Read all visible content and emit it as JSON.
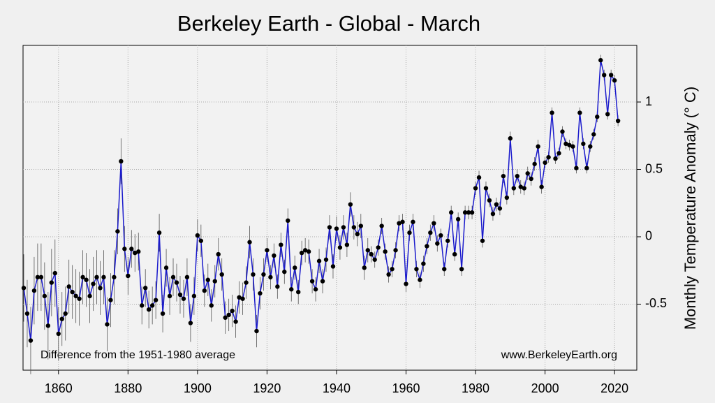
{
  "chart_data": {
    "type": "line",
    "title": "Berkeley Earth - Global - March",
    "y_label": "Monthly Temperature Anomaly (° C)",
    "annotations": [
      "Difference from the 1951-1980 average",
      "www.BerkeleyEarth.org"
    ],
    "color": "#1a1acc",
    "marker_color": "#000000",
    "grid": true,
    "xlim": [
      1849.8,
      2026.4
    ],
    "xticks": [
      1860,
      1880,
      1900,
      1920,
      1940,
      1960,
      1980,
      2000,
      2020
    ],
    "ylim": [
      -0.99,
      1.42
    ],
    "yticks": [
      -0.5,
      0,
      0.5,
      1
    ],
    "x": [
      1850,
      1851,
      1852,
      1853,
      1854,
      1855,
      1856,
      1857,
      1858,
      1859,
      1860,
      1861,
      1862,
      1863,
      1864,
      1865,
      1866,
      1867,
      1868,
      1869,
      1870,
      1871,
      1872,
      1873,
      1874,
      1875,
      1876,
      1877,
      1878,
      1879,
      1880,
      1881,
      1882,
      1883,
      1884,
      1885,
      1886,
      1887,
      1888,
      1889,
      1890,
      1891,
      1892,
      1893,
      1894,
      1895,
      1896,
      1897,
      1898,
      1899,
      1900,
      1901,
      1902,
      1903,
      1904,
      1905,
      1906,
      1907,
      1908,
      1909,
      1910,
      1911,
      1912,
      1913,
      1914,
      1915,
      1916,
      1917,
      1918,
      1919,
      1920,
      1921,
      1922,
      1923,
      1924,
      1925,
      1926,
      1927,
      1928,
      1929,
      1930,
      1931,
      1932,
      1933,
      1934,
      1935,
      1936,
      1937,
      1938,
      1939,
      1940,
      1941,
      1942,
      1943,
      1944,
      1945,
      1946,
      1947,
      1948,
      1949,
      1950,
      1951,
      1952,
      1953,
      1954,
      1955,
      1956,
      1957,
      1958,
      1959,
      1960,
      1961,
      1962,
      1963,
      1964,
      1965,
      1966,
      1967,
      1968,
      1969,
      1970,
      1971,
      1972,
      1973,
      1974,
      1975,
      1976,
      1977,
      1978,
      1979,
      1980,
      1981,
      1982,
      1983,
      1984,
      1985,
      1986,
      1987,
      1988,
      1989,
      1990,
      1991,
      1992,
      1993,
      1994,
      1995,
      1996,
      1997,
      1998,
      1999,
      2000,
      2001,
      2002,
      2003,
      2004,
      2005,
      2006,
      2007,
      2008,
      2009,
      2010,
      2011,
      2012,
      2013,
      2014,
      2015,
      2016,
      2017,
      2018,
      2019,
      2020,
      2021
    ],
    "values": [
      -0.38,
      -0.57,
      -0.77,
      -0.4,
      -0.3,
      -0.3,
      -0.44,
      -0.66,
      -0.34,
      -0.27,
      -0.72,
      -0.61,
      -0.57,
      -0.37,
      -0.41,
      -0.44,
      -0.46,
      -0.3,
      -0.32,
      -0.44,
      -0.35,
      -0.3,
      -0.38,
      -0.3,
      -0.65,
      -0.47,
      -0.3,
      0.04,
      0.56,
      -0.09,
      -0.29,
      -0.09,
      -0.12,
      -0.11,
      -0.51,
      -0.38,
      -0.54,
      -0.51,
      -0.47,
      0.03,
      -0.57,
      -0.23,
      -0.44,
      -0.3,
      -0.34,
      -0.43,
      -0.46,
      -0.3,
      -0.64,
      -0.44,
      0.01,
      -0.03,
      -0.4,
      -0.32,
      -0.51,
      -0.33,
      -0.13,
      -0.28,
      -0.6,
      -0.58,
      -0.55,
      -0.63,
      -0.45,
      -0.46,
      -0.34,
      -0.04,
      -0.28,
      -0.7,
      -0.42,
      -0.28,
      -0.1,
      -0.3,
      -0.14,
      -0.37,
      -0.06,
      -0.26,
      0.12,
      -0.39,
      -0.23,
      -0.41,
      -0.12,
      -0.1,
      -0.11,
      -0.33,
      -0.39,
      -0.18,
      -0.33,
      -0.17,
      0.07,
      -0.22,
      0.06,
      -0.08,
      0.07,
      -0.06,
      0.24,
      0.07,
      0.02,
      0.08,
      -0.23,
      -0.1,
      -0.13,
      -0.17,
      -0.08,
      0.08,
      -0.11,
      -0.28,
      -0.24,
      -0.1,
      0.1,
      0.11,
      -0.35,
      0.03,
      0.11,
      -0.24,
      -0.32,
      -0.2,
      -0.07,
      0.03,
      0.1,
      -0.05,
      0.01,
      -0.24,
      -0.03,
      0.18,
      -0.13,
      0.13,
      -0.24,
      0.18,
      0.18,
      0.18,
      0.36,
      0.44,
      -0.03,
      0.36,
      0.27,
      0.17,
      0.24,
      0.21,
      0.45,
      0.29,
      0.73,
      0.36,
      0.45,
      0.37,
      0.36,
      0.47,
      0.43,
      0.54,
      0.67,
      0.37,
      0.55,
      0.59,
      0.92,
      0.58,
      0.62,
      0.78,
      0.69,
      0.68,
      0.67,
      0.51,
      0.92,
      0.69,
      0.51,
      0.67,
      0.76,
      0.89,
      1.31,
      1.2,
      0.91,
      1.2,
      1.16,
      0.86
    ],
    "errors": [
      0.25,
      0.25,
      0.25,
      0.25,
      0.25,
      0.25,
      0.25,
      0.25,
      0.25,
      0.25,
      0.2,
      0.2,
      0.2,
      0.2,
      0.2,
      0.2,
      0.2,
      0.2,
      0.2,
      0.2,
      0.2,
      0.2,
      0.2,
      0.2,
      0.2,
      0.2,
      0.2,
      0.17,
      0.17,
      0.17,
      0.14,
      0.14,
      0.14,
      0.14,
      0.14,
      0.14,
      0.14,
      0.14,
      0.14,
      0.14,
      0.14,
      0.14,
      0.14,
      0.14,
      0.14,
      0.14,
      0.14,
      0.14,
      0.14,
      0.14,
      0.12,
      0.12,
      0.12,
      0.12,
      0.12,
      0.12,
      0.12,
      0.12,
      0.12,
      0.12,
      0.12,
      0.12,
      0.12,
      0.12,
      0.12,
      0.12,
      0.12,
      0.12,
      0.12,
      0.12,
      0.09,
      0.09,
      0.09,
      0.09,
      0.09,
      0.09,
      0.09,
      0.09,
      0.09,
      0.09,
      0.09,
      0.09,
      0.09,
      0.09,
      0.09,
      0.09,
      0.09,
      0.09,
      0.09,
      0.09,
      0.09,
      0.09,
      0.09,
      0.09,
      0.09,
      0.09,
      0.09,
      0.09,
      0.09,
      0.09,
      0.06,
      0.06,
      0.06,
      0.06,
      0.06,
      0.06,
      0.06,
      0.06,
      0.06,
      0.06,
      0.06,
      0.06,
      0.06,
      0.06,
      0.06,
      0.06,
      0.06,
      0.06,
      0.06,
      0.06,
      0.05,
      0.05,
      0.05,
      0.05,
      0.05,
      0.05,
      0.05,
      0.05,
      0.05,
      0.05,
      0.05,
      0.05,
      0.05,
      0.05,
      0.05,
      0.05,
      0.05,
      0.05,
      0.05,
      0.05,
      0.05,
      0.05,
      0.05,
      0.05,
      0.05,
      0.05,
      0.05,
      0.05,
      0.05,
      0.05,
      0.04,
      0.04,
      0.04,
      0.04,
      0.04,
      0.04,
      0.04,
      0.04,
      0.04,
      0.04,
      0.04,
      0.04,
      0.04,
      0.04,
      0.04,
      0.04,
      0.04,
      0.04,
      0.04,
      0.04,
      0.04,
      0.04
    ]
  }
}
